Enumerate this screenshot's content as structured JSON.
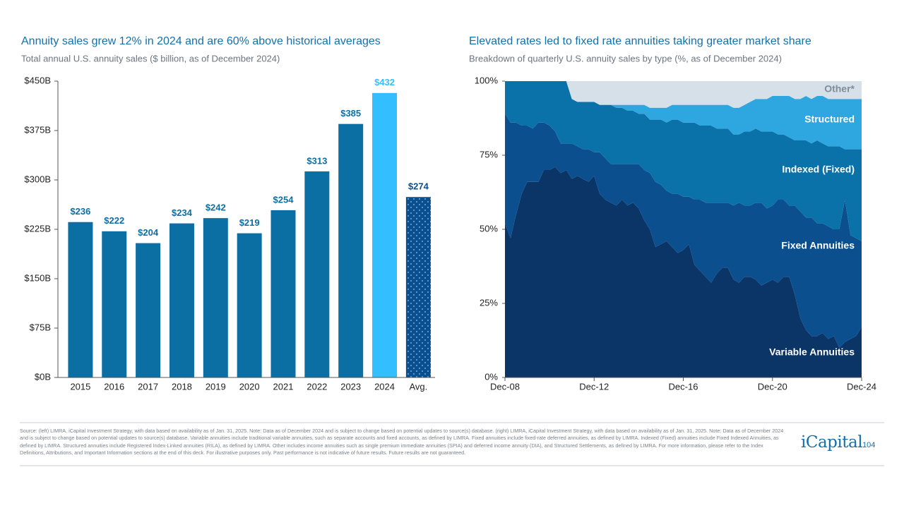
{
  "chart_data": [
    {
      "type": "bar",
      "title": "Annuity sales grew 12% in 2024 and are 60% above historical averages",
      "subtitle": "Total annual U.S. annuity sales ($ billion, as of December 2024)",
      "categories": [
        "2015",
        "2016",
        "2017",
        "2018",
        "2019",
        "2020",
        "2021",
        "2022",
        "2023",
        "2024",
        "Avg."
      ],
      "values": [
        236,
        222,
        204,
        234,
        242,
        219,
        254,
        313,
        385,
        432,
        274
      ],
      "value_labels": [
        "$236",
        "$222",
        "$204",
        "$234",
        "$242",
        "$219",
        "$254",
        "$313",
        "$385",
        "$432",
        "$274"
      ],
      "colors": [
        "#0b6fa4",
        "#0b6fa4",
        "#0b6fa4",
        "#0b6fa4",
        "#0b6fa4",
        "#0b6fa4",
        "#0b6fa4",
        "#0b6fa4",
        "#0b6fa4",
        "#33bfff",
        "#0a4f8f"
      ],
      "dotted": [
        false,
        false,
        false,
        false,
        false,
        false,
        false,
        false,
        false,
        false,
        true
      ],
      "ylim": [
        0,
        450
      ],
      "yticks": [
        {
          "value": 0,
          "label": "$0B"
        },
        {
          "value": 75,
          "label": "$75B"
        },
        {
          "value": 150,
          "label": "$150B"
        },
        {
          "value": 225,
          "label": "$225B"
        },
        {
          "value": 300,
          "label": "$300B"
        },
        {
          "value": 375,
          "label": "$375B"
        },
        {
          "value": 450,
          "label": "$450B"
        }
      ]
    },
    {
      "type": "stacked_area",
      "title": "Elevated rates led to fixed rate annuities taking greater market share",
      "subtitle": "Breakdown of quarterly U.S. annuity sales by type (%, as of December 2024)",
      "x": [
        "Dec-08",
        "Mar-09",
        "Jun-09",
        "Sep-09",
        "Dec-09",
        "Mar-10",
        "Jun-10",
        "Sep-10",
        "Dec-10",
        "Mar-11",
        "Jun-11",
        "Sep-11",
        "Dec-11",
        "Mar-12",
        "Jun-12",
        "Sep-12",
        "Dec-12",
        "Mar-13",
        "Jun-13",
        "Sep-13",
        "Dec-13",
        "Mar-14",
        "Jun-14",
        "Sep-14",
        "Dec-14",
        "Mar-15",
        "Jun-15",
        "Sep-15",
        "Dec-15",
        "Mar-16",
        "Jun-16",
        "Sep-16",
        "Dec-16",
        "Mar-17",
        "Jun-17",
        "Sep-17",
        "Dec-17",
        "Mar-18",
        "Jun-18",
        "Sep-18",
        "Dec-18",
        "Mar-19",
        "Jun-19",
        "Sep-19",
        "Dec-19",
        "Mar-20",
        "Jun-20",
        "Sep-20",
        "Dec-20",
        "Mar-21",
        "Jun-21",
        "Sep-21",
        "Dec-21",
        "Mar-22",
        "Jun-22",
        "Sep-22",
        "Dec-22",
        "Mar-23",
        "Jun-23",
        "Sep-23",
        "Dec-23",
        "Mar-24",
        "Jun-24",
        "Sep-24",
        "Dec-24"
      ],
      "series": [
        {
          "name": "Variable Annuities",
          "color": "#0a3566",
          "values": [
            52,
            47,
            55,
            62,
            66,
            66,
            66,
            70,
            70,
            71,
            69,
            70,
            67,
            68,
            67,
            66,
            68,
            62,
            60,
            59,
            58,
            60,
            58,
            59,
            57,
            53,
            50,
            44,
            45,
            46,
            44,
            42,
            43,
            45,
            38,
            36,
            34,
            32,
            35,
            37,
            37,
            33,
            32,
            34,
            34,
            33,
            31,
            32,
            33,
            32,
            34,
            34,
            28,
            20,
            16,
            14,
            14,
            15,
            13,
            14,
            10,
            12,
            13,
            14,
            17
          ]
        },
        {
          "name": "Fixed Annuities",
          "color": "#0b4f8f",
          "values": [
            37,
            39,
            31,
            23,
            19,
            18,
            20,
            16,
            15,
            12,
            10,
            9,
            12,
            10,
            10,
            11,
            8,
            14,
            14,
            13,
            14,
            12,
            14,
            13,
            15,
            17,
            19,
            22,
            20,
            17,
            18,
            20,
            18,
            16,
            22,
            24,
            25,
            27,
            24,
            22,
            22,
            25,
            27,
            24,
            24,
            26,
            28,
            25,
            25,
            28,
            26,
            24,
            30,
            36,
            38,
            40,
            38,
            37,
            38,
            36,
            40,
            48,
            35,
            33,
            29
          ]
        },
        {
          "name": "Indexed (Fixed)",
          "color": "#0a72a8",
          "values": [
            11,
            14,
            14,
            15,
            15,
            16,
            14,
            14,
            15,
            17,
            21,
            21,
            15,
            15,
            16,
            16,
            17,
            16,
            18,
            20,
            19,
            19,
            18,
            18,
            17,
            19,
            18,
            21,
            22,
            23,
            25,
            25,
            25,
            25,
            26,
            25,
            26,
            26,
            25,
            25,
            25,
            24,
            23,
            25,
            25,
            25,
            24,
            26,
            25,
            22,
            22,
            23,
            22,
            24,
            26,
            25,
            28,
            27,
            27,
            28,
            28,
            17,
            29,
            30,
            31
          ]
        },
        {
          "name": "Structured",
          "color": "#2ea6e0",
          "values": [
            0,
            0,
            0,
            0,
            0,
            0,
            0,
            0,
            0,
            0,
            0,
            0,
            0,
            0,
            0,
            0,
            0,
            0,
            0,
            0,
            1,
            1,
            2,
            2,
            3,
            3,
            4,
            4,
            4,
            5,
            5,
            5,
            6,
            6,
            6,
            7,
            7,
            7,
            8,
            8,
            8,
            9,
            9,
            9,
            10,
            10,
            11,
            11,
            12,
            13,
            13,
            14,
            14,
            14,
            15,
            15,
            15,
            16,
            16,
            16,
            16,
            17,
            17,
            17,
            17
          ]
        },
        {
          "name": "Other*",
          "color": "#d6e0e8",
          "values": [
            0,
            0,
            0,
            0,
            0,
            0,
            0,
            0,
            0,
            0,
            0,
            0,
            6,
            7,
            7,
            7,
            7,
            8,
            8,
            8,
            8,
            8,
            8,
            8,
            8,
            8,
            9,
            9,
            9,
            9,
            8,
            8,
            8,
            8,
            8,
            8,
            8,
            8,
            8,
            8,
            8,
            9,
            9,
            8,
            7,
            6,
            6,
            6,
            5,
            5,
            5,
            5,
            6,
            6,
            5,
            6,
            5,
            5,
            6,
            6,
            6,
            6,
            6,
            6,
            6
          ]
        }
      ],
      "ylim": [
        0,
        100
      ],
      "yticks": [
        {
          "value": 0,
          "label": "0%"
        },
        {
          "value": 25,
          "label": "25%"
        },
        {
          "value": 50,
          "label": "50%"
        },
        {
          "value": 75,
          "label": "75%"
        },
        {
          "value": 100,
          "label": "100%"
        }
      ],
      "xticks": [
        "Dec-08",
        "Dec-12",
        "Dec-16",
        "Dec-20",
        "Dec-24"
      ]
    }
  ],
  "footer": {
    "source": "Source: (left) LIMRA, iCapital Investment Strategy, with data based on availability as of Jan. 31, 2025. Note: Data as of December 2024 and is subject to change based on potential updates to source(s) database. (right) LIMRA, iCapital Investment Strategy, with data based on availability as of Jan. 31, 2025. Note: Data as of December 2024 and is subject to change based on potential updates to source(s) database. Variable annuities include traditional variable annuities, such as separate accounts and fixed accounts, as defined by LIMRA. Fixed annuities include fixed-rate deferred annuities, as defined by LIMRA. Indexed (Fixed) annuities include Fixed Indexed Annuities, as defined by LIMRA. Structured annuities include Registered Index-Linked annuities (RILA), as defined by LIMRA. Other includes income annuities such as single premium immediate annuities (SPIA) and deferred income annuity (DIA), and Structured Settlements, as defined by LIMRA. For more information, please refer to the Index Definitions, Attributions, and Important Information sections at the end of this deck. For illustrative purposes only. Past performance is not indicative of future results. Future results are not guaranteed.",
    "logo": "iCapital",
    "page": "104"
  }
}
